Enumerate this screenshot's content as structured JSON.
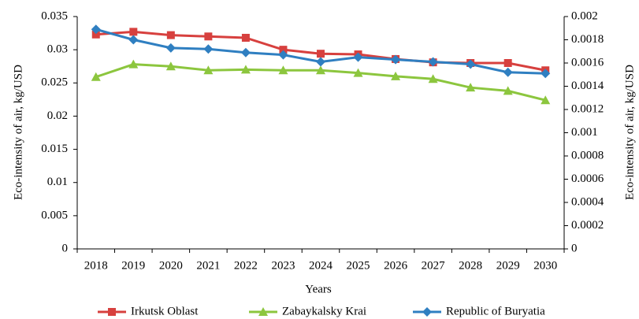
{
  "chart_data": {
    "type": "line",
    "categories": [
      "2018",
      "2019",
      "2020",
      "2021",
      "2022",
      "2023",
      "2024",
      "2025",
      "2026",
      "2027",
      "2028",
      "2029",
      "2030"
    ],
    "series": [
      {
        "name": "Irkutsk Oblast",
        "color": "#d7403e",
        "marker": "square",
        "values": [
          0.0323,
          0.0327,
          0.0322,
          0.032,
          0.0318,
          0.03,
          0.0294,
          0.0293,
          0.0286,
          0.0281,
          0.028,
          0.028,
          0.0269
        ]
      },
      {
        "name": "Zabaykalsky Krai",
        "color": "#8cc63e",
        "marker": "triangle",
        "values": [
          0.0259,
          0.0278,
          0.0275,
          0.0269,
          0.027,
          0.0269,
          0.0269,
          0.0265,
          0.026,
          0.0256,
          0.0243,
          0.0238,
          0.0224
        ]
      },
      {
        "name": "Republic of Buryatia",
        "color": "#2f7fc1",
        "marker": "diamond",
        "axis": "y2",
        "values": [
          0.00189,
          0.0018,
          0.00173,
          0.00172,
          0.00169,
          0.00167,
          0.00161,
          0.00165,
          0.00163,
          0.00161,
          0.00159,
          0.00152,
          0.00151
        ]
      }
    ],
    "xlabel": "Years",
    "ylabel": "Eco-intensity of air, kg/USD",
    "y2label": "Eco-intensity of air, kg/USD",
    "ylim": [
      0,
      0.035
    ],
    "yticks": [
      0,
      0.005,
      0.01,
      0.015,
      0.02,
      0.025,
      0.03,
      0.035
    ],
    "y2lim": [
      0,
      0.002
    ],
    "y2ticks": [
      0,
      0.0002,
      0.0004,
      0.0006,
      0.0008,
      0.001,
      0.0012,
      0.0014,
      0.0016,
      0.0018,
      0.002
    ],
    "legend": "bottom"
  }
}
